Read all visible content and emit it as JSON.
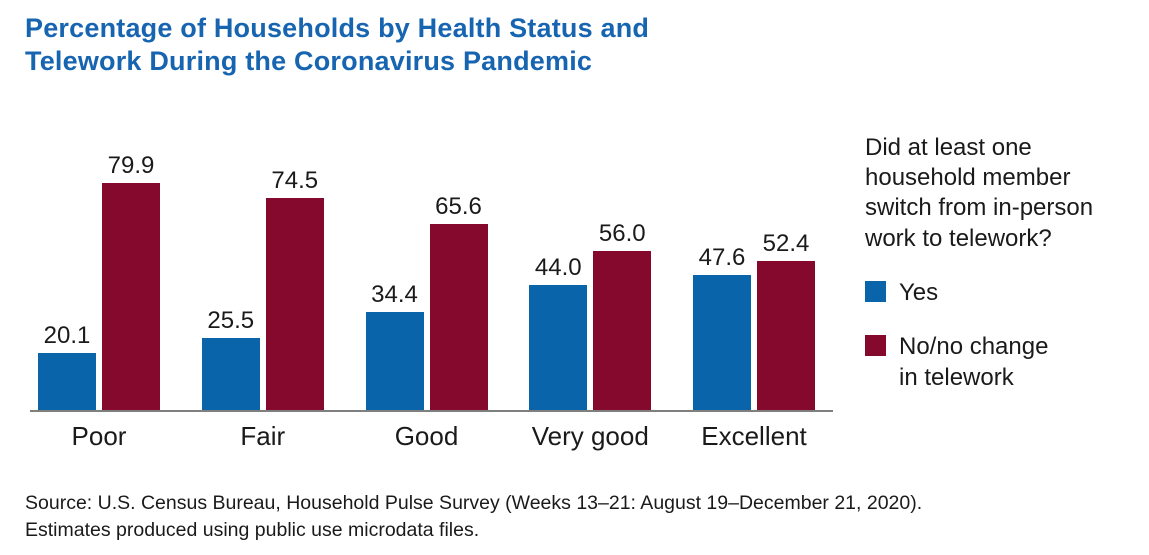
{
  "header": {
    "title_lines": [
      "Percentage of Households by Health Status and",
      "Telework During the Coronavirus Pandemic"
    ],
    "title_color": "#1765b0"
  },
  "chart_data": {
    "type": "bar",
    "title": "Percentage of Households by Health Status and Telework During the Coronavirus Pandemic",
    "categories": [
      "Poor",
      "Fair",
      "Good",
      "Very good",
      "Excellent"
    ],
    "series": [
      {
        "name": "Yes",
        "color": "#0a64aa",
        "values": [
          20.1,
          25.5,
          34.4,
          44.0,
          47.6
        ],
        "labels": [
          "20.1",
          "25.5",
          "34.4",
          "44.0",
          "47.6"
        ]
      },
      {
        "name": "No/no change in telework",
        "color": "#85092d",
        "values": [
          79.9,
          74.5,
          65.6,
          56.0,
          52.4
        ],
        "labels": [
          "79.9",
          "74.5",
          "65.6",
          "56.0",
          "52.4"
        ]
      }
    ],
    "ylim": [
      0,
      100
    ],
    "unit": "percent",
    "grid": false,
    "value_labels": true,
    "legend_position": "right"
  },
  "legend": {
    "question": "Did at least one household member switch from in-person work to telework?",
    "items": [
      {
        "label": "Yes",
        "color": "#0a64aa"
      },
      {
        "label": "No/no change in telework",
        "color": "#85092d"
      }
    ]
  },
  "source": {
    "lines": [
      "Source: U.S. Census Bureau, Household Pulse Survey (Weeks 13–21: August 19–December 21, 2020).",
      "Estimates produced using public use microdata files."
    ]
  }
}
